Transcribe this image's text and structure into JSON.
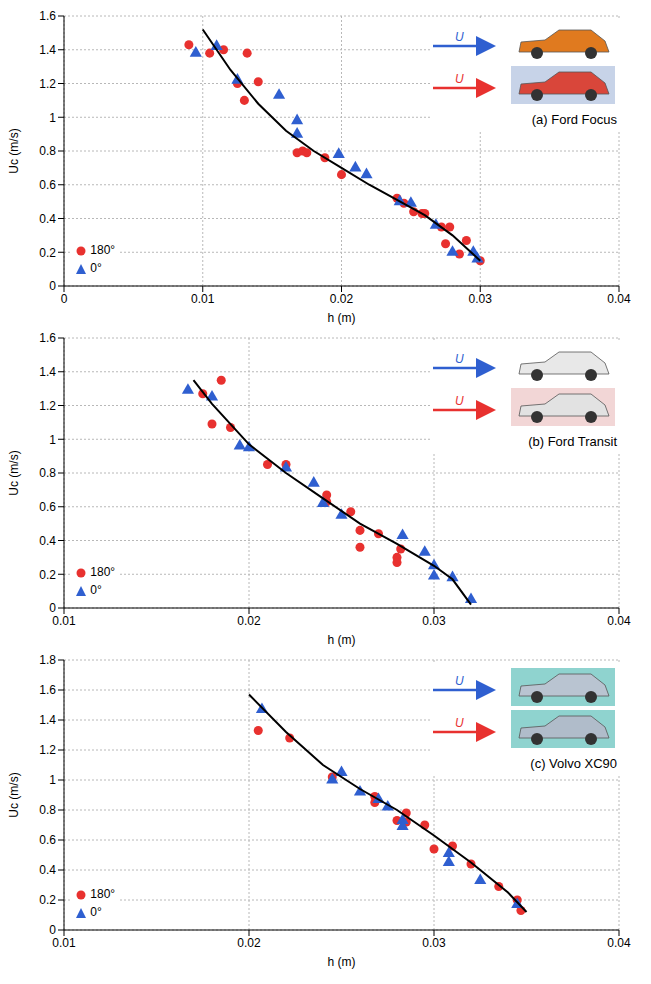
{
  "chart_data": [
    {
      "type": "scatter",
      "title": "(a) Ford Focus",
      "x_label": "h (m)",
      "y_label": "Uc (m/s)",
      "annotations": [
        {
          "text": "U",
          "color": "#2f5fd0"
        },
        {
          "text": "U",
          "color": "#e8312f"
        }
      ],
      "xlim": [
        0,
        0.04
      ],
      "xticks": [
        0,
        0.01,
        0.02,
        0.03,
        0.04
      ],
      "ylim": [
        0,
        1.6
      ],
      "yticks": [
        0,
        0.2,
        0.4,
        0.6,
        0.8,
        1,
        1.2,
        1.4,
        1.6
      ],
      "grid": true,
      "legend": "lower left",
      "series": [
        {
          "name": "180°",
          "color": "#e8312f",
          "marker": "circle",
          "x": [
            0.009,
            0.0105,
            0.0115,
            0.0125,
            0.013,
            0.0132,
            0.014,
            0.0168,
            0.0172,
            0.0175,
            0.0188,
            0.02,
            0.024,
            0.0245,
            0.0252,
            0.0258,
            0.026,
            0.0272,
            0.0275,
            0.0278,
            0.029,
            0.0285,
            0.03
          ],
          "values": [
            1.43,
            1.38,
            1.4,
            1.2,
            1.1,
            1.38,
            1.21,
            0.79,
            0.8,
            0.79,
            0.76,
            0.66,
            0.52,
            0.49,
            0.44,
            0.43,
            0.43,
            0.35,
            0.25,
            0.35,
            0.27,
            0.19,
            0.15
          ]
        },
        {
          "name": "0°",
          "color": "#2f5fd0",
          "marker": "triangle",
          "x": [
            0.0095,
            0.011,
            0.0125,
            0.0155,
            0.0168,
            0.0168,
            0.0198,
            0.021,
            0.0218,
            0.0242,
            0.025,
            0.0268,
            0.028,
            0.0295,
            0.0298
          ],
          "values": [
            1.38,
            1.42,
            1.22,
            1.13,
            0.98,
            0.9,
            0.78,
            0.7,
            0.66,
            0.5,
            0.49,
            0.36,
            0.2,
            0.2,
            0.16
          ]
        },
        {
          "type": "line",
          "color": "#000000",
          "x": [
            0.01,
            0.012,
            0.014,
            0.016,
            0.018,
            0.02,
            0.022,
            0.024,
            0.026,
            0.028,
            0.03
          ],
          "values": [
            1.52,
            1.28,
            1.08,
            0.92,
            0.8,
            0.7,
            0.6,
            0.51,
            0.42,
            0.3,
            0.15
          ]
        }
      ]
    },
    {
      "type": "scatter",
      "title": "(b) Ford Transit",
      "x_label": "h (m)",
      "y_label": "Uc (m/s)",
      "annotations": [
        {
          "text": "U",
          "color": "#2f5fd0"
        },
        {
          "text": "U",
          "color": "#e8312f"
        }
      ],
      "xlim": [
        0.01,
        0.04
      ],
      "xticks": [
        0.01,
        0.02,
        0.03,
        0.04
      ],
      "ylim": [
        0,
        1.6
      ],
      "yticks": [
        0,
        0.2,
        0.4,
        0.6,
        0.8,
        1,
        1.2,
        1.4,
        1.6
      ],
      "grid": true,
      "legend": "lower left",
      "series": [
        {
          "name": "180°",
          "color": "#e8312f",
          "marker": "circle",
          "x": [
            0.0175,
            0.018,
            0.0185,
            0.019,
            0.021,
            0.022,
            0.0242,
            0.0242,
            0.0255,
            0.026,
            0.026,
            0.027,
            0.028,
            0.028,
            0.0282
          ],
          "values": [
            1.27,
            1.09,
            1.35,
            1.07,
            0.85,
            0.85,
            0.67,
            0.63,
            0.57,
            0.46,
            0.36,
            0.44,
            0.3,
            0.27,
            0.35
          ]
        },
        {
          "name": "0°",
          "color": "#2f5fd0",
          "marker": "triangle",
          "x": [
            0.0167,
            0.018,
            0.0195,
            0.02,
            0.022,
            0.0235,
            0.024,
            0.025,
            0.0283,
            0.0295,
            0.03,
            0.03,
            0.031,
            0.032
          ],
          "values": [
            1.29,
            1.25,
            0.96,
            0.95,
            0.83,
            0.74,
            0.62,
            0.55,
            0.43,
            0.33,
            0.25,
            0.19,
            0.18,
            0.05
          ]
        },
        {
          "type": "line",
          "color": "#000000",
          "x": [
            0.017,
            0.018,
            0.02,
            0.022,
            0.024,
            0.026,
            0.028,
            0.03,
            0.031,
            0.032
          ],
          "values": [
            1.35,
            1.21,
            0.97,
            0.8,
            0.65,
            0.5,
            0.38,
            0.25,
            0.17,
            0.02
          ]
        }
      ]
    },
    {
      "type": "scatter",
      "title": "(c) Volvo XC90",
      "x_label": "h (m)",
      "y_label": "Uc (m/s)",
      "annotations": [
        {
          "text": "U",
          "color": "#2f5fd0"
        },
        {
          "text": "U",
          "color": "#e8312f"
        }
      ],
      "xlim": [
        0.01,
        0.04
      ],
      "xticks": [
        0.01,
        0.02,
        0.03,
        0.04
      ],
      "ylim": [
        0,
        1.8
      ],
      "yticks": [
        0,
        0.2,
        0.4,
        0.6,
        0.8,
        1,
        1.2,
        1.4,
        1.6,
        1.8
      ],
      "grid": true,
      "legend": "lower left",
      "series": [
        {
          "name": "180°",
          "color": "#e8312f",
          "marker": "circle",
          "x": [
            0.0205,
            0.0222,
            0.0245,
            0.0268,
            0.0268,
            0.028,
            0.0285,
            0.0285,
            0.0295,
            0.03,
            0.031,
            0.032,
            0.0335,
            0.0345,
            0.0347
          ],
          "values": [
            1.33,
            1.28,
            1.02,
            0.89,
            0.85,
            0.73,
            0.78,
            0.72,
            0.7,
            0.54,
            0.56,
            0.44,
            0.29,
            0.2,
            0.13
          ]
        },
        {
          "name": "0°",
          "color": "#2f5fd0",
          "marker": "triangle",
          "x": [
            0.0207,
            0.0245,
            0.025,
            0.026,
            0.027,
            0.0275,
            0.0283,
            0.0283,
            0.0308,
            0.0308,
            0.0325,
            0.0345
          ],
          "values": [
            1.47,
            1.0,
            1.05,
            0.92,
            0.87,
            0.82,
            0.73,
            0.69,
            0.45,
            0.51,
            0.33,
            0.17
          ]
        },
        {
          "type": "line",
          "color": "#000000",
          "x": [
            0.02,
            0.022,
            0.024,
            0.026,
            0.028,
            0.03,
            0.032,
            0.034,
            0.035
          ],
          "values": [
            1.57,
            1.32,
            1.1,
            0.94,
            0.8,
            0.63,
            0.45,
            0.25,
            0.12
          ]
        }
      ]
    }
  ]
}
